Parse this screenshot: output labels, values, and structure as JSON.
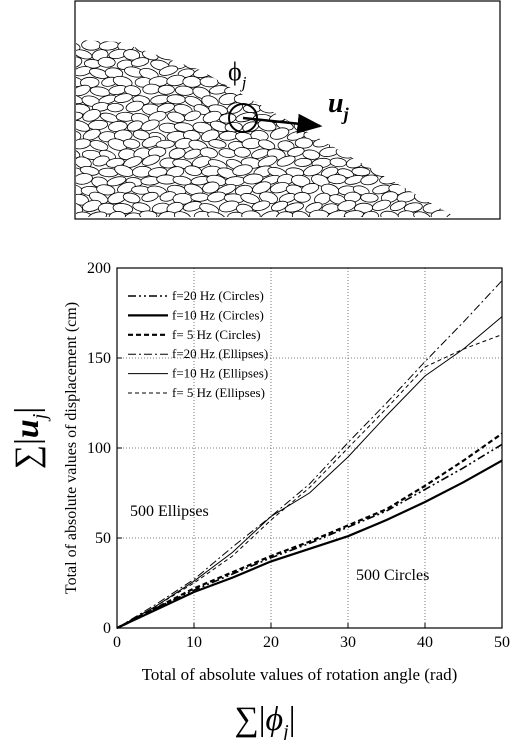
{
  "figure": {
    "illustration": {
      "angle_symbol": "ϕ",
      "angle_subscript": "j",
      "vector_symbol": "u",
      "vector_subscript": "j"
    }
  },
  "chart_data": {
    "type": "line",
    "x_label": "Total of absolute values of rotation angle (rad)",
    "y_label": "Total of absolute values of displacement (cm)",
    "x_symbol": [
      "∑|",
      "ϕ",
      "j",
      "|"
    ],
    "y_symbol": [
      "∑|",
      "u",
      "j",
      "|"
    ],
    "annotations": [
      "500 Ellipses",
      "500 Circles"
    ],
    "x": [
      0,
      5,
      10,
      15,
      20,
      25,
      30,
      35,
      40,
      45,
      50
    ],
    "series": [
      {
        "name": "f=20 Hz (Circles)",
        "color": "#000000",
        "width": 1.6,
        "dash": "8 3 2 3 2 3",
        "values": [
          0,
          11,
          21,
          30,
          39,
          47,
          56,
          65,
          77,
          89,
          102
        ]
      },
      {
        "name": "f=10 Hz (Circles)",
        "color": "#000000",
        "width": 2.2,
        "dash": "none",
        "values": [
          0,
          10,
          20,
          28,
          37,
          44,
          51,
          60,
          70,
          81,
          93
        ]
      },
      {
        "name": "f= 5 Hz (Circles)",
        "color": "#000000",
        "width": 2.2,
        "dash": "5 3",
        "values": [
          0,
          11,
          22,
          31,
          40,
          48,
          57,
          66,
          79,
          93,
          108
        ]
      },
      {
        "name": "f=20 Hz (Ellipses)",
        "color": "#000000",
        "width": 1,
        "dash": "8 3 2 3",
        "values": [
          0,
          13,
          27,
          45,
          62,
          80,
          103,
          125,
          148,
          170,
          193
        ]
      },
      {
        "name": "f=10 Hz (Ellipses)",
        "color": "#000000",
        "width": 1,
        "dash": "none",
        "values": [
          0,
          12,
          26,
          42,
          62,
          75,
          95,
          118,
          140,
          155,
          173
        ]
      },
      {
        "name": "f= 5 Hz (Ellipses)",
        "color": "#000000",
        "width": 1,
        "dash": "4 3",
        "values": [
          0,
          12,
          25,
          40,
          60,
          78,
          100,
          122,
          145,
          155,
          163
        ]
      }
    ],
    "xlim": [
      0,
      50
    ],
    "ylim": [
      0,
      200
    ],
    "xticks": [
      0,
      10,
      20,
      30,
      40,
      50
    ],
    "yticks": [
      0,
      50,
      100,
      150,
      200
    ],
    "grid": true
  }
}
